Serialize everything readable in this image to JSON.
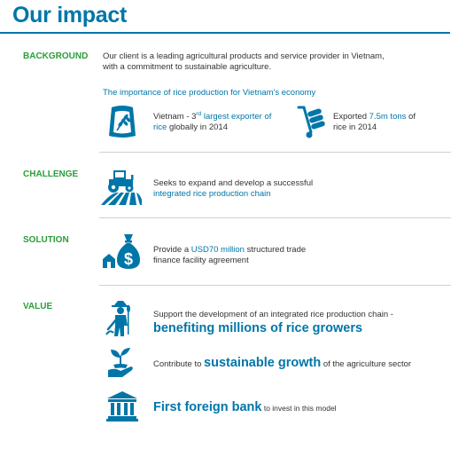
{
  "title": "Our impact",
  "sections": {
    "background": {
      "label": "BACKGROUND",
      "desc_line1": "Our client is a leading agricultural products and service provider in Vietnam,",
      "desc_line2": "with a commitment to sustainable agriculture.",
      "subheading": "The importance of rice production for Vietnam's economy",
      "fact1": {
        "pre": "Vietnam - 3",
        "sup": "rd",
        "hl": " largest exporter of",
        "hl2": "rice",
        "post": " globally in 2014",
        "icon": "rice-sack-icon"
      },
      "fact2": {
        "pre": "Exported ",
        "hl": "7.5m tons",
        "post": " of",
        "line2": "rice in 2014",
        "icon": "hand-truck-icon"
      }
    },
    "challenge": {
      "label": "CHALLENGE",
      "line1": "Seeks to expand and develop a successful",
      "line2": "integrated rice production chain",
      "icon": "tractor-field-icon"
    },
    "solution": {
      "label": "SOLUTION",
      "pre": "Provide a ",
      "hl": "USD70 million",
      "post": " structured trade",
      "line2": "finance facility agreement",
      "icon": "money-bag-icon"
    },
    "value": {
      "label": "VALUE",
      "item1": {
        "line1": "Support the development of an integrated rice production chain -",
        "big": "benefiting millions of rice growers",
        "icon": "farmer-icon"
      },
      "item2": {
        "pre": "Contribute to ",
        "big": "sustainable growth",
        "post": " of the agriculture sector",
        "icon": "plant-hand-icon"
      },
      "item3": {
        "big": "First foreign bank",
        "post": " to invest in this model",
        "icon": "bank-icon"
      }
    }
  },
  "colors": {
    "primary": "#0076a8",
    "label": "#2b9e3a",
    "text": "#333333",
    "rule": "#d0d0d0"
  }
}
